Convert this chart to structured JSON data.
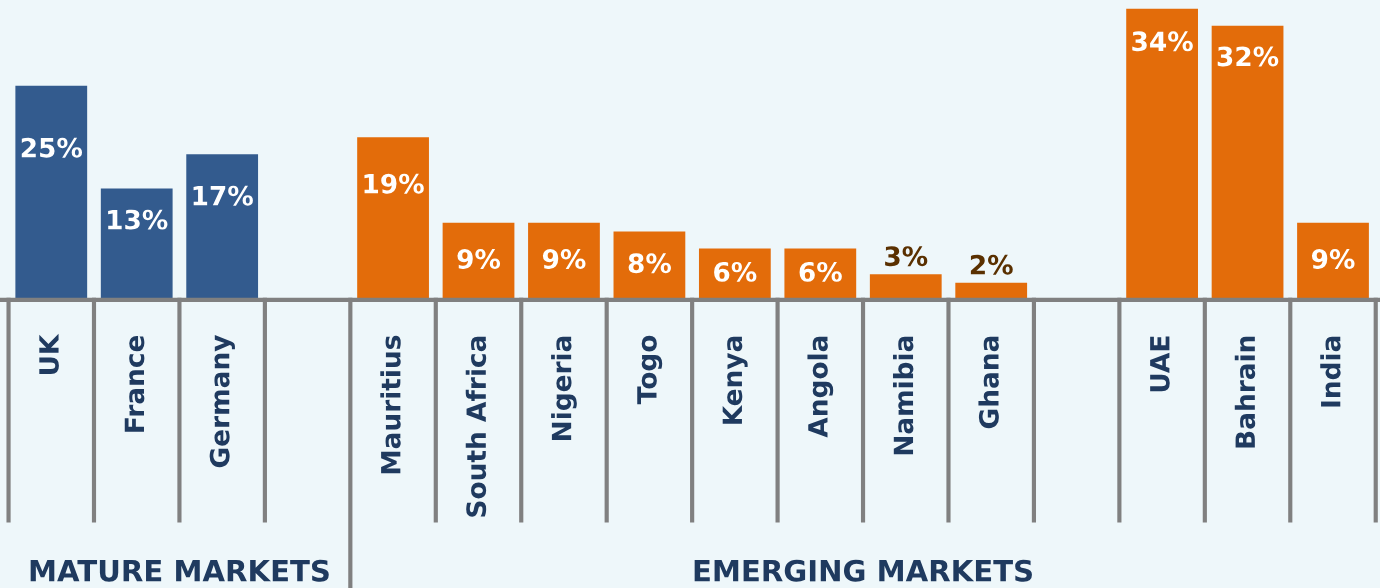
{
  "chart_data": {
    "type": "bar",
    "categories": [
      "UK",
      "France",
      "Germany",
      null,
      "Mauritius",
      "South Africa",
      "Nigeria",
      "Togo",
      "Kenya",
      "Angola",
      "Namibia",
      "Ghana",
      null,
      "UAE",
      "Bahrain",
      "India"
    ],
    "values": [
      25,
      13,
      17,
      null,
      19,
      9,
      9,
      8,
      6,
      6,
      3,
      2,
      null,
      34,
      32,
      9
    ],
    "colors": [
      "#335b8e",
      "#335b8e",
      "#335b8e",
      "#335b8e",
      "#e36c0a",
      "#e36c0a",
      "#e36c0a",
      "#e36c0a",
      "#e36c0a",
      "#e36c0a",
      "#e36c0a",
      "#e36c0a",
      "#e36c0a",
      "#e36c0a",
      "#e36c0a",
      "#e36c0a"
    ],
    "data_labels": true,
    "value_labels": [
      "25%",
      "13%",
      "17%",
      null,
      "19%",
      "9%",
      "9%",
      "8%",
      "6%",
      "6%",
      "3%",
      "2%",
      null,
      "34%",
      "32%",
      "9%"
    ],
    "annotations": [
      "MATURE MARKETS",
      "EMERGING MARKETS"
    ],
    "grid": false
  }
}
